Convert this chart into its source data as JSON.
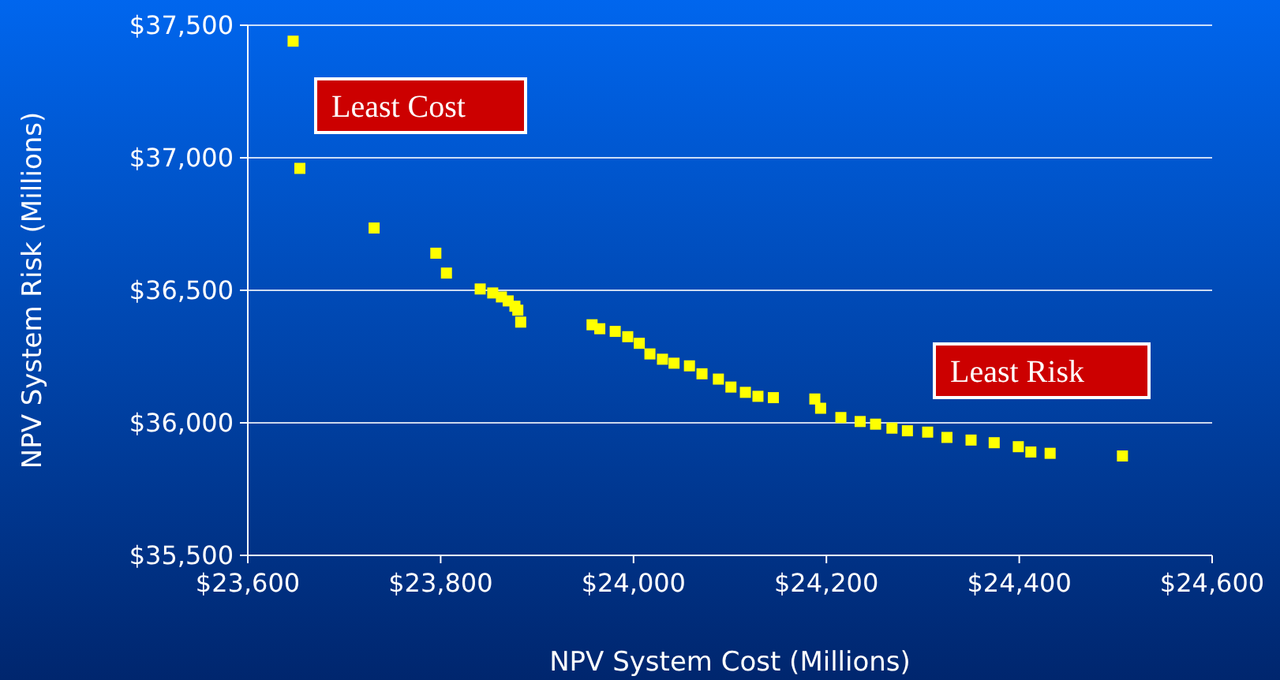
{
  "chart_data": {
    "type": "scatter",
    "xlabel": "NPV System Cost (Millions)",
    "ylabel": "NPV System Risk (Millions)",
    "x": [
      23647,
      23654,
      23731,
      23795,
      23806,
      23841,
      23854,
      23863,
      23870,
      23877,
      23880,
      23883,
      23957,
      23965,
      23981,
      23994,
      24006,
      24017,
      24030,
      24042,
      24058,
      24071,
      24088,
      24101,
      24116,
      24129,
      24145,
      24188,
      24194,
      24215,
      24235,
      24251,
      24268,
      24284,
      24305,
      24325,
      24350,
      24374,
      24399,
      24412,
      24432,
      24507
    ],
    "series": [
      {
        "color": "#ffff00",
        "values": [
          37440,
          36960,
          36735,
          36640,
          36565,
          36505,
          36490,
          36475,
          36460,
          36440,
          36425,
          36380,
          36370,
          36355,
          36345,
          36325,
          36300,
          36260,
          36240,
          36225,
          36215,
          36185,
          36165,
          36135,
          36115,
          36100,
          36095,
          36090,
          36055,
          36020,
          36005,
          35995,
          35980,
          35970,
          35965,
          35945,
          35935,
          35925,
          35910,
          35890,
          35885,
          35875
        ]
      }
    ],
    "xlim": [
      23600,
      24600
    ],
    "xticks": [
      {
        "value": 23600,
        "label": "$23,600"
      },
      {
        "value": 23800,
        "label": "$23,800"
      },
      {
        "value": 24000,
        "label": "$24,000"
      },
      {
        "value": 24200,
        "label": "$24,200"
      },
      {
        "value": 24400,
        "label": "$24,400"
      },
      {
        "value": 24600,
        "label": "$24,600"
      }
    ],
    "ylim": [
      35500,
      37500
    ],
    "yticks": [
      {
        "value": 35500,
        "label": "$35,500"
      },
      {
        "value": 36000,
        "label": "$36,000"
      },
      {
        "value": 36500,
        "label": "$36,500"
      },
      {
        "value": 37000,
        "label": "$37,000"
      },
      {
        "value": 37500,
        "label": "$37,500"
      }
    ],
    "grid": "y",
    "marker": "square",
    "annotations": [
      "Least Cost",
      "Least Risk"
    ]
  }
}
